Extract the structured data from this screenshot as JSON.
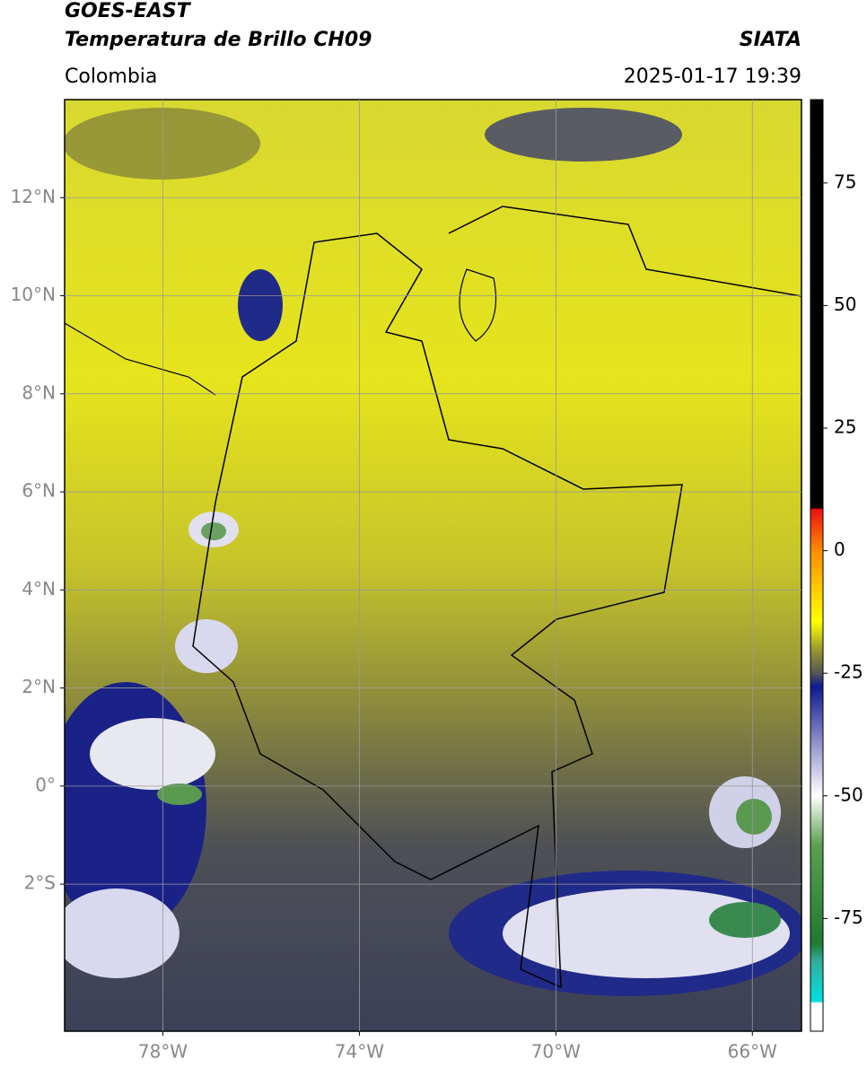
{
  "header": {
    "title": "GOES-EAST",
    "subtitle": "Temperatura de Brillo CH09",
    "source": "SIATA",
    "region": "Colombia",
    "datetime": "2025-01-17 19:39"
  },
  "map": {
    "xlim": [
      -80,
      -65
    ],
    "ylim": [
      -5,
      14
    ],
    "grid": true,
    "xticks": [
      {
        "value": -78,
        "label": "78°W"
      },
      {
        "value": -74,
        "label": "74°W"
      },
      {
        "value": -70,
        "label": "70°W"
      },
      {
        "value": -66,
        "label": "66°W"
      }
    ],
    "yticks": [
      {
        "value": 12,
        "label": "12°N"
      },
      {
        "value": 10,
        "label": "10°N"
      },
      {
        "value": 8,
        "label": "8°N"
      },
      {
        "value": 6,
        "label": "6°N"
      },
      {
        "value": 4,
        "label": "4°N"
      },
      {
        "value": 2,
        "label": "2°N"
      },
      {
        "value": 0,
        "label": "0°"
      },
      {
        "value": -2,
        "label": "2°S"
      }
    ]
  },
  "colorbar": {
    "lim": [
      -98,
      92
    ],
    "ticks": [
      75,
      50,
      25,
      0,
      -25,
      -50,
      -75
    ]
  }
}
